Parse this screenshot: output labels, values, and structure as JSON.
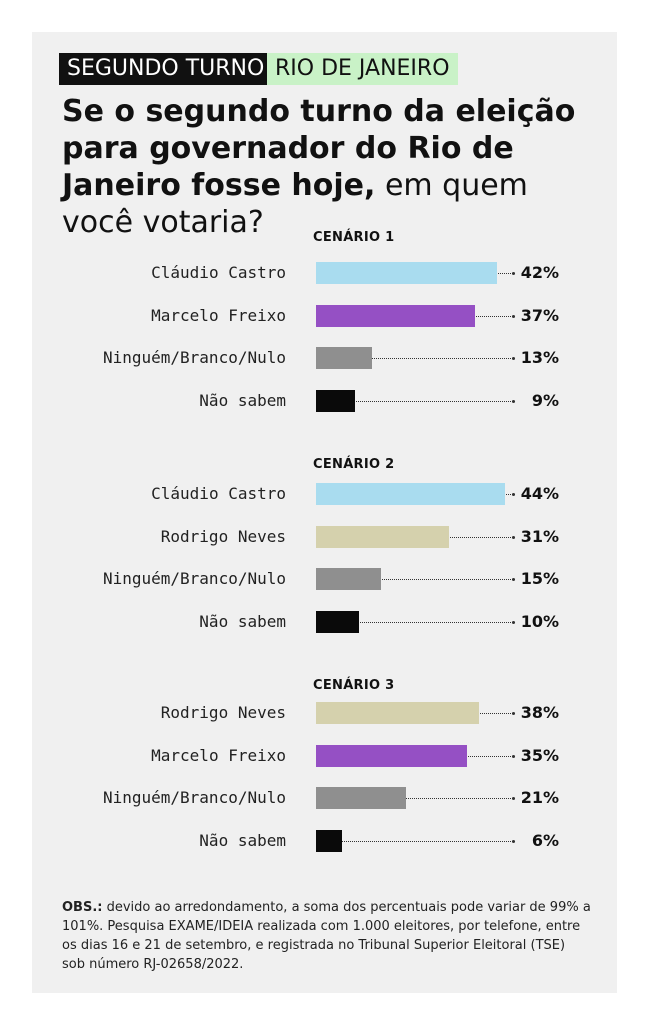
{
  "tags": {
    "round": "SEGUNDO TURNO",
    "state": "RIO DE JANEIRO"
  },
  "headline": {
    "bold": "Se o segundo turno da eleição para governador do Rio de Janeiro fosse hoje,",
    "regular": " em quem você votaria?"
  },
  "colors": {
    "castro": "#a9dcef",
    "freixo": "#9550c4",
    "neves": "#d5d1ad",
    "nenhum": "#8f8f8f",
    "naosabem": "#0a0a0a"
  },
  "chart_data": [
    {
      "type": "bar",
      "title": "CENÁRIO 1",
      "categories": [
        "Cláudio Castro",
        "Marcelo Freixo",
        "Ninguém/Branco/Nulo",
        "Não sabem"
      ],
      "values": [
        42,
        37,
        13,
        9
      ],
      "labels": [
        "42%",
        "37%",
        "13%",
        "9%"
      ],
      "colors": [
        "#a9dcef",
        "#9550c4",
        "#8f8f8f",
        "#0a0a0a"
      ]
    },
    {
      "type": "bar",
      "title": "CENÁRIO 2",
      "categories": [
        "Cláudio Castro",
        "Rodrigo Neves",
        "Ninguém/Branco/Nulo",
        "Não sabem"
      ],
      "values": [
        44,
        31,
        15,
        10
      ],
      "labels": [
        "44%",
        "31%",
        "15%",
        "10%"
      ],
      "colors": [
        "#a9dcef",
        "#d5d1ad",
        "#8f8f8f",
        "#0a0a0a"
      ]
    },
    {
      "type": "bar",
      "title": "CENÁRIO 3",
      "categories": [
        "Rodrigo Neves",
        "Marcelo Freixo",
        "Ninguém/Branco/Nulo",
        "Não sabem"
      ],
      "values": [
        38,
        35,
        21,
        6
      ],
      "labels": [
        "38%",
        "35%",
        "21%",
        "6%"
      ],
      "colors": [
        "#d5d1ad",
        "#9550c4",
        "#8f8f8f",
        "#0a0a0a"
      ]
    }
  ],
  "note": {
    "label": "OBS.:",
    "text": " devido ao arredondamento, a soma dos percentuais pode variar de 99% a 101%. Pesquisa EXAME/IDEIA realizada com 1.000 eleitores, por telefone, entre os dias 16 e 21 de setembro, e registrada no Tribunal Superior Eleitoral (TSE) sob número RJ-02658/2022."
  }
}
